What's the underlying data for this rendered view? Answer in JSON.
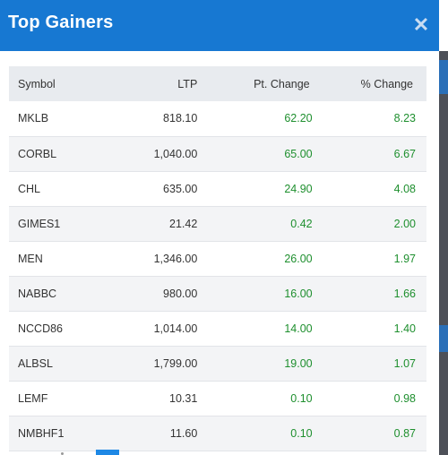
{
  "modal": {
    "title": "Top Gainers",
    "close_icon": "close-icon"
  },
  "table": {
    "columns": [
      "Symbol",
      "LTP",
      "Pt. Change",
      "% Change"
    ],
    "rows": [
      {
        "symbol": "MKLB",
        "ltp": "818.10",
        "pt_change": "62.20",
        "pct_change": "8.23"
      },
      {
        "symbol": "CORBL",
        "ltp": "1,040.00",
        "pt_change": "65.00",
        "pct_change": "6.67"
      },
      {
        "symbol": "CHL",
        "ltp": "635.00",
        "pt_change": "24.90",
        "pct_change": "4.08"
      },
      {
        "symbol": "GIMES1",
        "ltp": "21.42",
        "pt_change": "0.42",
        "pct_change": "2.00"
      },
      {
        "symbol": "MEN",
        "ltp": "1,346.00",
        "pt_change": "26.00",
        "pct_change": "1.97"
      },
      {
        "symbol": "NABBC",
        "ltp": "980.00",
        "pt_change": "16.00",
        "pct_change": "1.66"
      },
      {
        "symbol": "NCCD86",
        "ltp": "1,014.00",
        "pt_change": "14.00",
        "pct_change": "1.40"
      },
      {
        "symbol": "ALBSL",
        "ltp": "1,799.00",
        "pt_change": "19.00",
        "pct_change": "1.07"
      },
      {
        "symbol": "LEMF",
        "ltp": "10.31",
        "pt_change": "0.10",
        "pct_change": "0.98"
      },
      {
        "symbol": "NMBHF1",
        "ltp": "11.60",
        "pt_change": "0.10",
        "pct_change": "0.87"
      }
    ]
  },
  "colors": {
    "header_bg": "#1778d2",
    "gain": "#1e8f2e",
    "table_header_bg": "#e8ebef",
    "row_alt_bg": "#f3f4f6"
  }
}
